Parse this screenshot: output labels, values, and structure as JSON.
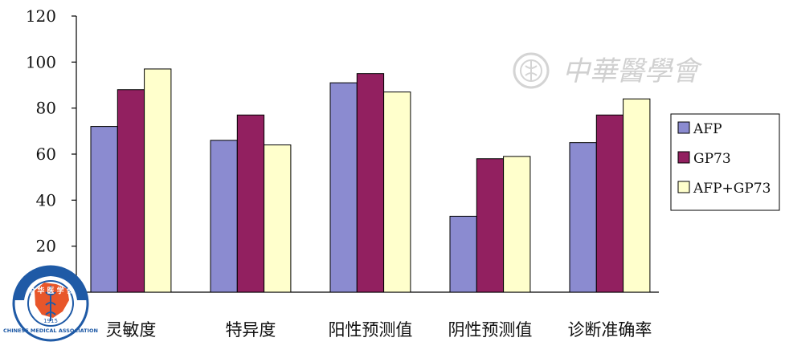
{
  "chart_data": {
    "type": "bar",
    "title": "",
    "xlabel": "",
    "ylabel": "",
    "ylim": [
      0,
      120
    ],
    "yticks": [
      20,
      40,
      60,
      80,
      100,
      120
    ],
    "grid": false,
    "legend_position": "right",
    "categories": [
      "灵敏度",
      "特异度",
      "阳性预测值",
      "阴性预测值",
      "诊断准确率"
    ],
    "series": [
      {
        "name": "AFP",
        "color": "#8b8bd0",
        "values": [
          72,
          66,
          91,
          33,
          65
        ]
      },
      {
        "name": "GP73",
        "color": "#922060",
        "values": [
          88,
          77,
          95,
          58,
          77
        ]
      },
      {
        "name": "AFP+GP73",
        "color": "#ffffcc",
        "values": [
          97,
          64,
          87,
          59,
          84
        ]
      }
    ]
  },
  "watermark": {
    "text": "中華醫學會",
    "icon": "association-seal-icon"
  },
  "logo": {
    "icon": "chinese-medical-association-logo-icon",
    "top_text": "中 华 医 学 会",
    "ring_text": "CHINESE MEDICAL ASSOCIATION",
    "year": "1915"
  }
}
